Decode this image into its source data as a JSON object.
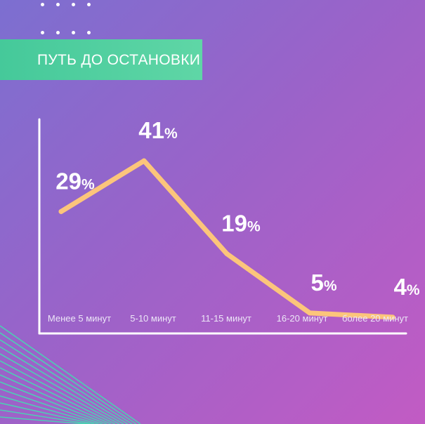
{
  "header": {
    "title": "ПУТЬ ДО ОСТАНОВКИ"
  },
  "colors": {
    "background_start": "#7c6fd0",
    "background_end": "#c25bc4",
    "banner": "#4fcf9f",
    "line": "#fcc57b",
    "axis": "#ffffff",
    "decor": "#40e0b0"
  },
  "chart_data": {
    "type": "line",
    "title": "ПУТЬ ДО ОСТАНОВКИ",
    "xlabel": "",
    "ylabel": "",
    "categories": [
      "Менее 5 минут",
      "5-10 минут",
      "11-15 минут",
      "16-20 минут",
      "более 20 минут"
    ],
    "values": [
      29,
      41,
      19,
      5,
      4
    ],
    "value_suffix": "%",
    "ylim": [
      0,
      45
    ],
    "grid": false,
    "legend": "none"
  }
}
